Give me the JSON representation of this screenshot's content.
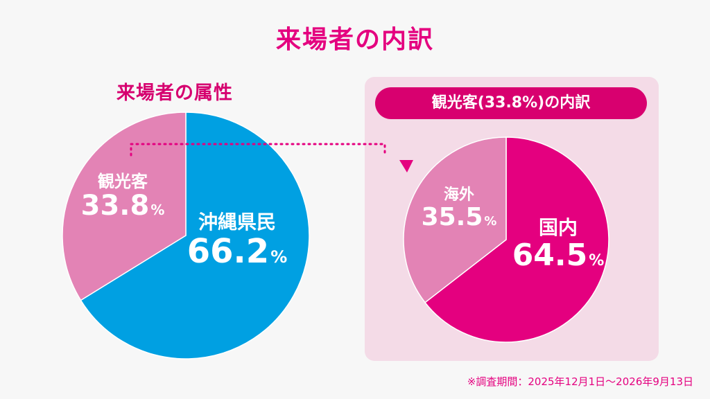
{
  "title": "来場者の内訳",
  "subtitle": "来場者の属性",
  "panel_title": "観光客(33.8%)の内訳",
  "footnote": "※調査期間：2025年12月1日〜2026年9月13日",
  "colors": {
    "accent": "#e4007f",
    "okinawa": "#00a0e2",
    "tourist": "#e383b5",
    "domestic": "#e4007f",
    "overseas": "#e383b5"
  },
  "chart_data": [
    {
      "type": "pie",
      "title": "来場者の属性",
      "slices": [
        {
          "label": "沖縄県民",
          "value": 66.2,
          "display": "66.2",
          "unit": "%"
        },
        {
          "label": "観光客",
          "value": 33.8,
          "display": "33.8",
          "unit": "%"
        }
      ]
    },
    {
      "type": "pie",
      "title": "観光客(33.8%)の内訳",
      "slices": [
        {
          "label": "国内",
          "value": 64.5,
          "display": "64.5",
          "unit": "%"
        },
        {
          "label": "海外",
          "value": 35.5,
          "display": "35.5",
          "unit": "%"
        }
      ]
    }
  ]
}
